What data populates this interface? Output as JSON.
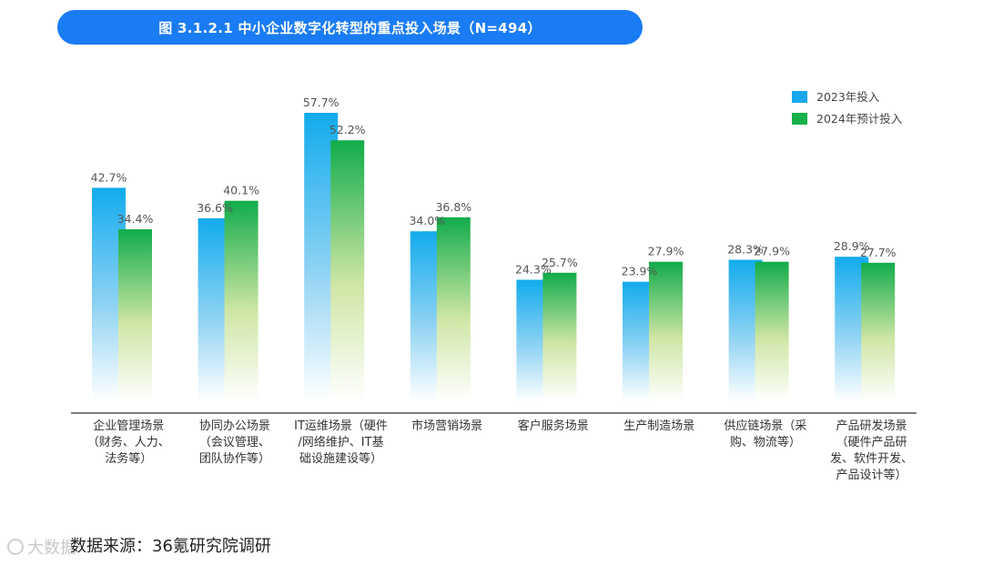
{
  "header": {
    "title": "图 3.1.2.1 中小企业数字化转型的重点投入场景（N=494）"
  },
  "footer": {
    "source": "数据来源：36氪研究院调研",
    "watermark": "大数据"
  },
  "chart_data": {
    "type": "bar",
    "title": "图 3.1.2.1 中小企业数字化转型的重点投入场景（N=494）",
    "xlabel": "",
    "ylabel": "",
    "ylim": [
      0,
      57.7
    ],
    "grid": false,
    "legend_position": "top-right",
    "value_suffix": "%",
    "categories": [
      [
        "企业管理场景",
        "（财务、人力、",
        "法务等）"
      ],
      [
        "协同办公场景",
        "（会议管理、",
        "团队协作等）"
      ],
      [
        "IT运维场景（硬件",
        "/网络维护、IT基",
        "础设施建设等）"
      ],
      [
        "市场营销场景"
      ],
      [
        "客户服务场景"
      ],
      [
        "生产制造场景"
      ],
      [
        "供应链场景（采",
        "购、物流等）"
      ],
      [
        "产品研发场景",
        "（硬件产品研",
        "发、软件开发、",
        "产品设计等）"
      ]
    ],
    "series": [
      {
        "name": "2023年投入",
        "color": "#1aa7ee",
        "values": [
          42.7,
          36.6,
          57.7,
          34.0,
          24.3,
          23.9,
          28.3,
          28.9
        ]
      },
      {
        "name": "2024年预计投入",
        "color": "#17b24a",
        "values": [
          34.4,
          40.1,
          52.2,
          36.8,
          25.7,
          27.9,
          27.9,
          27.7
        ]
      }
    ]
  }
}
